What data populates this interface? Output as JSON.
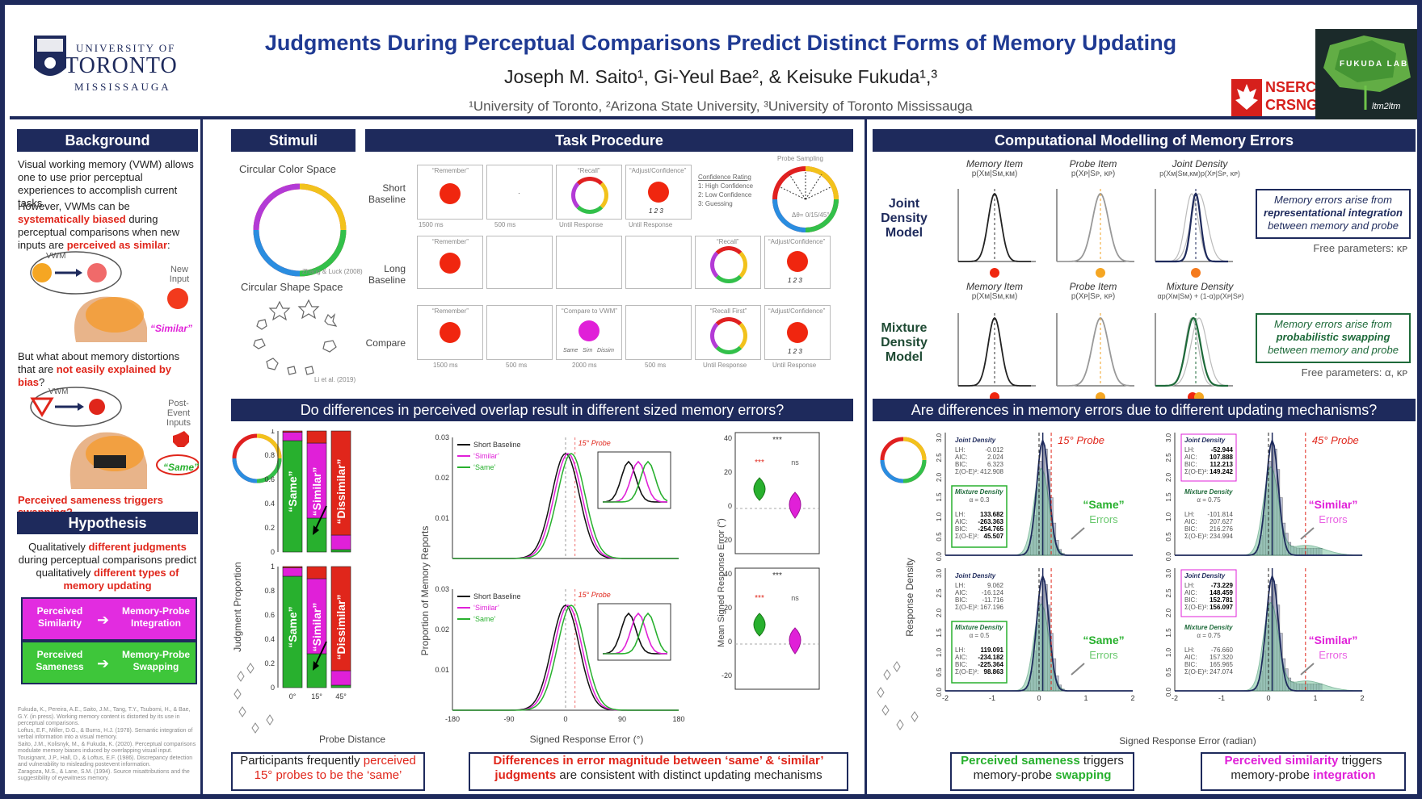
{
  "header": {
    "title": "Judgments During Perceptual Comparisons Predict Distinct Forms of Memory Updating",
    "authors": "Joseph M. Saito¹, Gi-Yeul Bae², & Keisuke Fukuda¹,³",
    "affiliations": "¹University of Toronto, ²Arizona State University, ³University of Toronto Mississauga",
    "uoft_line1": "UNIVERSITY OF",
    "uoft_line2": "TORONTO",
    "uoft_line3": "MISSISSAUGA",
    "nserc_line1": "NSERC",
    "nserc_line2": "CRSNG",
    "lab_text": "FUKUDA LAB",
    "lab_sub": "ltm2ltm"
  },
  "colors": {
    "navy": "#1e2a5c",
    "red": "#e0261b",
    "magenta": "#e020d8",
    "green": "#28b02e"
  },
  "background": {
    "heading": "Background",
    "p1": "Visual working memory (VWM) allows one to use prior perceptual experiences to accomplish current tasks.",
    "p2a": "However, VWMs can be ",
    "p2b": "systematically biased",
    "p2c": " during perceptual comparisons when new inputs are ",
    "p2d": "perceived as similar",
    "p2e": ":",
    "vwm": "VWM",
    "new_input": "New Input",
    "similar": "“Similar”",
    "p3a": "But what about memory distortions that are ",
    "p3b": "not easily explained by bias",
    "p3c": "?",
    "vwm2": "VWM",
    "post_event": "Post-Event Inputs",
    "same": "“Same”",
    "stop": "STOP",
    "swap_line": "Perceived sameness triggers swapping?"
  },
  "hypothesis": {
    "heading": "Hypothesis",
    "p1a": "Qualitatively ",
    "p1b": "different judgments",
    "p1c": " during perceptual comparisons predict qualitatively ",
    "p1d": "different types of memory updating",
    "box1_left": "Perceived Similarity",
    "box1_right": "Memory-Probe Integration",
    "box2_left": "Perceived Sameness",
    "box2_right": "Memory-Probe Swapping"
  },
  "references": [
    "Fukuda, K., Pereira, A.E., Saito, J.M., Tang, T.Y., Tsubomi, H., & Bae, G.Y. (in press). Working memory content is distorted by its use in perceptual comparisons.",
    "Loftus, E.F., Miller, D.G., & Burns, H.J. (1978). Semantic integration of verbal information into a visual memory.",
    "Saito, J.M., Kolisnyk, M., & Fukuda, K. (2020). Perceptual comparisons modulate memory biases induced by overlapping visual input.",
    "Tousignant, J.P., Hall, D., & Loftus, E.F. (1986). Discrepancy detection and vulnerability to misleading postevent information.",
    "Zaragoza, M.S., & Lane, S.M. (1994). Source misattributions and the suggestibility of eyewitness memory."
  ],
  "stimuli": {
    "heading": "Stimuli",
    "color_space": "Circular Color Space",
    "color_cite": "Zhang & Luck (2008)",
    "shape_space": "Circular Shape Space",
    "shape_cite": "Li et al. (2019)"
  },
  "task": {
    "heading": "Task Procedure",
    "rows": [
      "Short Baseline",
      "Long Baseline",
      "Compare"
    ],
    "remember": "“Remember”",
    "recall": "“Recall”",
    "adjust": "“Adjust/Confidence”",
    "compare_vwm": "“Compare to VWM”",
    "recall_first": "“Recall First”",
    "conf_title": "Confidence Rating",
    "conf1": "1: High Confidence",
    "conf2": "2: Low Confidence",
    "conf3": "3: Guessing",
    "probe_sampling": "Probe Sampling",
    "delta": "Δθ= 0/15/45°",
    "ratings": "1 2 3",
    "same_sim_dissim": "Same   Sim   Dissim",
    "row1_times": [
      "1500 ms",
      "500 ms",
      "Until Response",
      "Until Response"
    ],
    "row3_times": [
      "1500 ms",
      "500 ms",
      "2000 ms",
      "500 ms",
      "Until Response",
      "Until Response"
    ]
  },
  "modelling": {
    "heading": "Computational Modelling of Memory Errors",
    "joint_label": "Joint Density Model",
    "mixture_label": "Mixture Density Model",
    "memory_item": "Memory Item",
    "probe_item": "Probe Item",
    "joint_density": "Joint Density",
    "mixture_density": "Mixture Density",
    "f_mem": "p(Xᴍ|Sᴍ,κᴍ)",
    "f_probe": "p(Xᴘ|Sᴘ, κᴘ)",
    "f_joint": "p(Xᴍ|Sᴍ,κᴍ)p(Xᴘ|Sᴘ, κᴘ)",
    "f_mix": "αp(Xᴍ|Sᴍ) + (1-α)p(Xᴘ|Sᴘ)",
    "box1a": "Memory errors arise from",
    "box1b": "representational integration",
    "box1c": "between memory and probe",
    "free1": "Free parameters: κᴘ",
    "box2a": "Memory errors arise from",
    "box2b": "probabilistic swapping",
    "box2c": "between memory and probe",
    "free2": "Free parameters: α, κᴘ"
  },
  "overlap": {
    "heading": "Do differences in perceived overlap result in different sized memory errors?",
    "ylabel_prop": "Judgment Proportion",
    "xlabel_probe": "Probe Distance",
    "bar_same": "“Same”",
    "bar_similar": "“Similar”",
    "bar_dissim": "“Dissimilar”",
    "probe_ticks": [
      "0°",
      "15°",
      "45°"
    ],
    "dist_ylabel": "Proportion of Memory Reports",
    "dist_xlabel": "Signed Response Error (°)",
    "legend": [
      "Short Baseline",
      "‘Similar’",
      "‘Same’"
    ],
    "probe15": "15° Probe",
    "violin_ylabel": "Mean Signed Response Error (°)",
    "sig": "***",
    "ns": "ns",
    "conc1a": "Participants frequently ",
    "conc1b": "perceived 15° probes to be the ‘same’",
    "conc2a": "Differences in error magnitude between ‘same’ & ‘similar’ judgments",
    "conc2b": " are consistent with distinct updating mechanisms"
  },
  "updating": {
    "heading": "Are differences in memory errors due to different updating mechanisms?",
    "ylabel": "Response Density",
    "xlabel": "Signed Response Error (radian)",
    "probe15": "15° Probe",
    "probe45": "45° Probe",
    "same_errors": "“Same” Errors",
    "similar_errors": "“Similar” Errors",
    "panels": [
      {
        "jd": [
          "-0.012",
          "2.024",
          "6.323",
          "412.908"
        ],
        "md_a": "α = 0.3",
        "md": [
          "133.682",
          "-263.363",
          "-254.765",
          "45.507"
        ]
      },
      {
        "jd": [
          "-52.944",
          "107.888",
          "112.213",
          "149.242"
        ],
        "md_a": "α = 0.75",
        "md": [
          "-101.814",
          "207.627",
          "216.276",
          "234.994"
        ]
      },
      {
        "jd": [
          "9.062",
          "-16.124",
          "-11.716",
          "167.196"
        ],
        "md_a": "α = 0.5",
        "md": [
          "119.091",
          "-234.182",
          "-225.364",
          "98.863"
        ]
      },
      {
        "jd": [
          "-73.229",
          "148.459",
          "152.781",
          "156.097"
        ],
        "md_a": "α = 0.75",
        "md": [
          "-76.660",
          "157.320",
          "165.965",
          "247.074"
        ]
      }
    ],
    "stat_labels": [
      "LH:",
      "AIC:",
      "BIC:",
      "Σ(O-E)²:"
    ],
    "jd_title": "Joint Density",
    "md_title": "Mixture Density",
    "conc_left_a": "Perceived sameness",
    "conc_left_b": " triggers memory-probe ",
    "conc_left_c": "swapping",
    "conc_right_a": "Perceived similarity",
    "conc_right_b": " triggers memory-probe ",
    "conc_right_c": "integration"
  },
  "chart_data": [
    {
      "type": "bar",
      "title": "",
      "xlabel": "Probe Distance",
      "ylabel": "Judgment Proportion",
      "categories": [
        "0°",
        "15°",
        "45°"
      ],
      "ylim": [
        0,
        1
      ],
      "series": [
        {
          "name": "“Same”",
          "values": [
            0.92,
            0.28,
            0.02
          ]
        },
        {
          "name": "“Similar”",
          "values": [
            0.07,
            0.62,
            0.12
          ]
        },
        {
          "name": "“Dissimilar”",
          "values": [
            0.01,
            0.1,
            0.86
          ]
        }
      ]
    },
    {
      "type": "line",
      "title": "",
      "xlabel": "Signed Response Error (°)",
      "ylabel": "Proportion of Memory Reports",
      "x": [
        -180,
        -90,
        0,
        90,
        180
      ],
      "ylim": [
        0,
        0.03
      ],
      "series": [
        {
          "name": "Short Baseline",
          "peak": 0.026,
          "center": 0
        },
        {
          "name": "‘Similar’",
          "peak": 0.026,
          "center": 4
        },
        {
          "name": "‘Same’",
          "peak": 0.026,
          "center": 9
        }
      ]
    }
  ]
}
